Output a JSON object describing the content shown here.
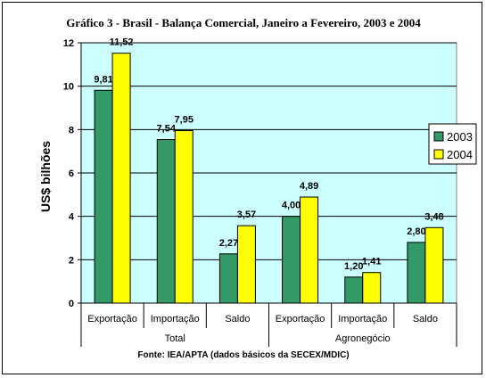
{
  "chart_data": {
    "type": "bar",
    "title": "Gráfico 3 - Brasil - Balança Comercial, Janeiro a Fevereiro, 2003 e 2004",
    "ylabel": "US$ bilhões",
    "ylim": [
      0,
      12
    ],
    "yticks": [
      0,
      2,
      4,
      6,
      8,
      10,
      12
    ],
    "grid": true,
    "legend_position": "right",
    "categories": [
      "Exportação",
      "Importação",
      "Saldo",
      "Exportação",
      "Importação",
      "Saldo"
    ],
    "groups": [
      {
        "label": "Total",
        "span": 3
      },
      {
        "label": "Agronegócio",
        "span": 3
      }
    ],
    "series": [
      {
        "name": "2003",
        "color": "#339966",
        "values": [
          9.81,
          7.54,
          2.27,
          4.0,
          1.2,
          2.8
        ],
        "labels": [
          "9,81",
          "7,54",
          "2,27",
          "4,00",
          "1,20",
          "2,80"
        ]
      },
      {
        "name": "2004",
        "color": "#FFFF00",
        "values": [
          11.52,
          7.95,
          3.57,
          4.89,
          1.41,
          3.48
        ],
        "labels": [
          "11,52",
          "7,95",
          "3,57",
          "4,89",
          "1,41",
          "3,48"
        ]
      }
    ],
    "plot_background": "#CCFFFF",
    "source": "Fonte: IEA/APTA (dados básicos da SECEX/MDIC)"
  }
}
